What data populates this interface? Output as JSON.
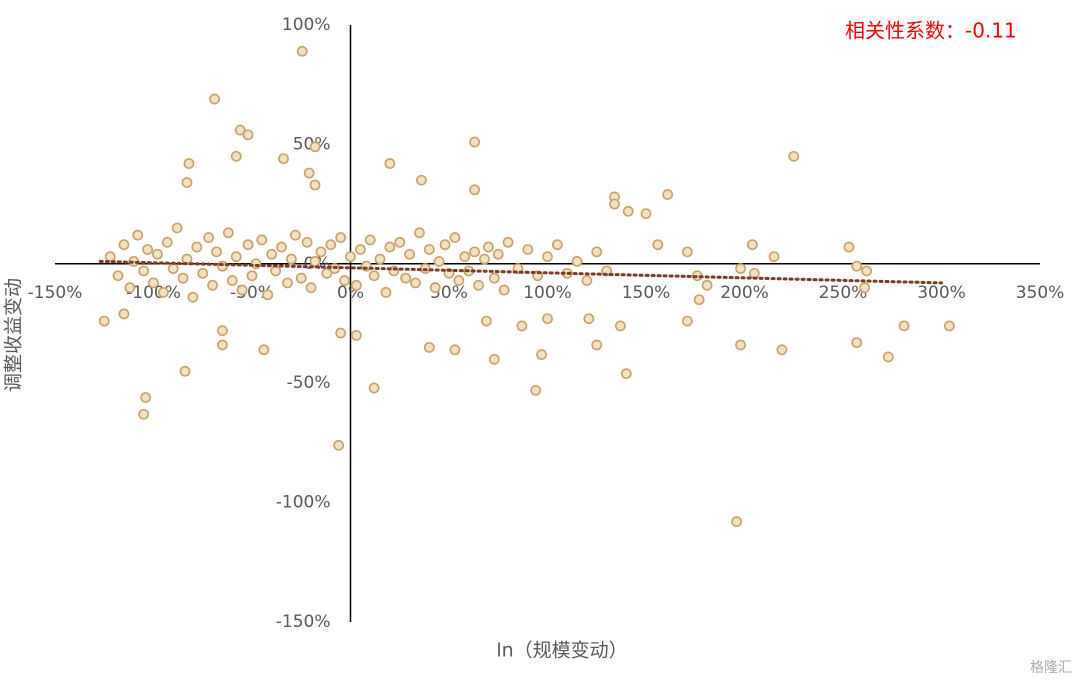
{
  "chart_data": {
    "type": "scatter",
    "annotation": "相关性系数：-0.11",
    "x_label": "ln（规模变动）",
    "y_label": "调整收益变动",
    "watermark": "格隆汇",
    "color": "#c9a066",
    "trend_color": "#7a3b27",
    "xlim": [
      -150,
      350
    ],
    "ylim": [
      -150,
      100
    ],
    "xticks": [
      {
        "value": -150,
        "label": "-150%"
      },
      {
        "value": -100,
        "label": "-100%"
      },
      {
        "value": -50,
        "label": "-50%"
      },
      {
        "value": 0,
        "label": "0%"
      },
      {
        "value": 50,
        "label": "50%"
      },
      {
        "value": 100,
        "label": "100%"
      },
      {
        "value": 150,
        "label": "150%"
      },
      {
        "value": 200,
        "label": "200%"
      },
      {
        "value": 250,
        "label": "250%"
      },
      {
        "value": 300,
        "label": "300%"
      },
      {
        "value": 350,
        "label": "350%"
      }
    ],
    "yticks": [
      {
        "value": 100,
        "label": "100%"
      },
      {
        "value": 50,
        "label": "50%"
      },
      {
        "value": 0,
        "label": "0%"
      },
      {
        "value": -50,
        "label": "-50%"
      },
      {
        "value": -100,
        "label": "-100%"
      },
      {
        "value": -150,
        "label": "-150%"
      }
    ],
    "x": [
      -24.5,
      -69,
      -56,
      -52,
      -58,
      -82,
      -83,
      -34,
      -18,
      -21,
      -18,
      20,
      63,
      36,
      63,
      225,
      161,
      134,
      134,
      141,
      150,
      156,
      171,
      204,
      215,
      253,
      198,
      205,
      176,
      181,
      177,
      171,
      198,
      219,
      257,
      262,
      261,
      257,
      273,
      281,
      304,
      196,
      -105,
      -104,
      -84,
      -6,
      12,
      94,
      97,
      73,
      -44,
      -65,
      -65,
      -5,
      3,
      40,
      53,
      100,
      140,
      125,
      87,
      69,
      137,
      121,
      -125,
      -115,
      -122,
      -118,
      -115,
      -112,
      -110,
      -108,
      -105,
      -103,
      -100,
      -98,
      -95,
      -93,
      -90,
      -88,
      -85,
      -83,
      -80,
      -78,
      -75,
      -72,
      -70,
      -68,
      -65,
      -62,
      -60,
      -58,
      -55,
      -52,
      -50,
      -48,
      -45,
      -42,
      -40,
      -38,
      -35,
      -32,
      -30,
      -28,
      -25,
      -22,
      -20,
      -18,
      -15,
      -12,
      -10,
      -8,
      -5,
      -3,
      0,
      3,
      5,
      8,
      10,
      12,
      15,
      18,
      20,
      22,
      25,
      28,
      30,
      33,
      35,
      38,
      40,
      43,
      45,
      48,
      50,
      53,
      55,
      58,
      60,
      63,
      65,
      68,
      70,
      73,
      75,
      78,
      80,
      85,
      90,
      95,
      100,
      105,
      110,
      115,
      120,
      125,
      130
    ],
    "values": [
      89,
      69,
      56,
      54,
      45,
      42,
      34,
      44,
      49,
      38,
      33,
      42,
      51,
      35,
      31,
      45,
      29,
      28,
      25,
      22,
      21,
      8,
      5,
      8,
      3,
      7,
      -2,
      -4,
      -5,
      -9,
      -15,
      -24,
      -34,
      -36,
      -1,
      -3,
      -10,
      -33,
      -39,
      -26,
      -26,
      -108,
      -63,
      -56,
      -45,
      -76,
      -52,
      -53,
      -38,
      -40,
      -36,
      -28,
      -34,
      -29,
      -30,
      -35,
      -36,
      -23,
      -46,
      -34,
      -26,
      -24,
      -26,
      -23,
      -24,
      -21,
      3,
      -5,
      8,
      -10,
      1,
      12,
      -3,
      6,
      -8,
      4,
      -12,
      9,
      -2,
      15,
      -6,
      2,
      -14,
      7,
      -4,
      11,
      -9,
      5,
      -1,
      13,
      -7,
      3,
      -11,
      8,
      -5,
      0,
      10,
      -13,
      4,
      -3,
      7,
      -8,
      2,
      12,
      -6,
      9,
      -10,
      1,
      5,
      -4,
      8,
      -2,
      11,
      -7,
      3,
      -9,
      6,
      -1,
      10,
      -5,
      2,
      -12,
      7,
      -3,
      9,
      -6,
      4,
      -8,
      13,
      -2,
      6,
      -10,
      1,
      8,
      -4,
      11,
      -7,
      3,
      -3,
      5,
      -9,
      2,
      7,
      -6,
      4,
      -11,
      9,
      -2,
      6,
      -5,
      3,
      8,
      -4,
      1,
      -7,
      5,
      -3
    ],
    "trendline": {
      "x": [
        -127,
        300
      ],
      "y": [
        1,
        -8
      ]
    }
  }
}
